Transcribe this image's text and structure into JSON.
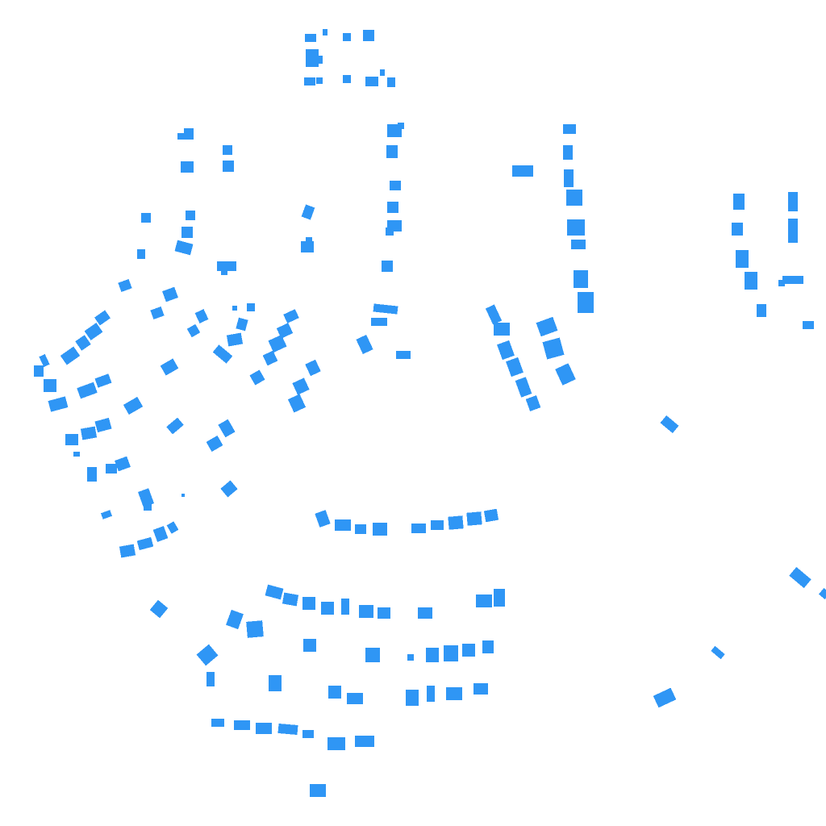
{
  "map": {
    "style": {
      "background": "#ffffff",
      "building_fill": "#2f96f5"
    },
    "feature_type": "building footprints"
  }
}
